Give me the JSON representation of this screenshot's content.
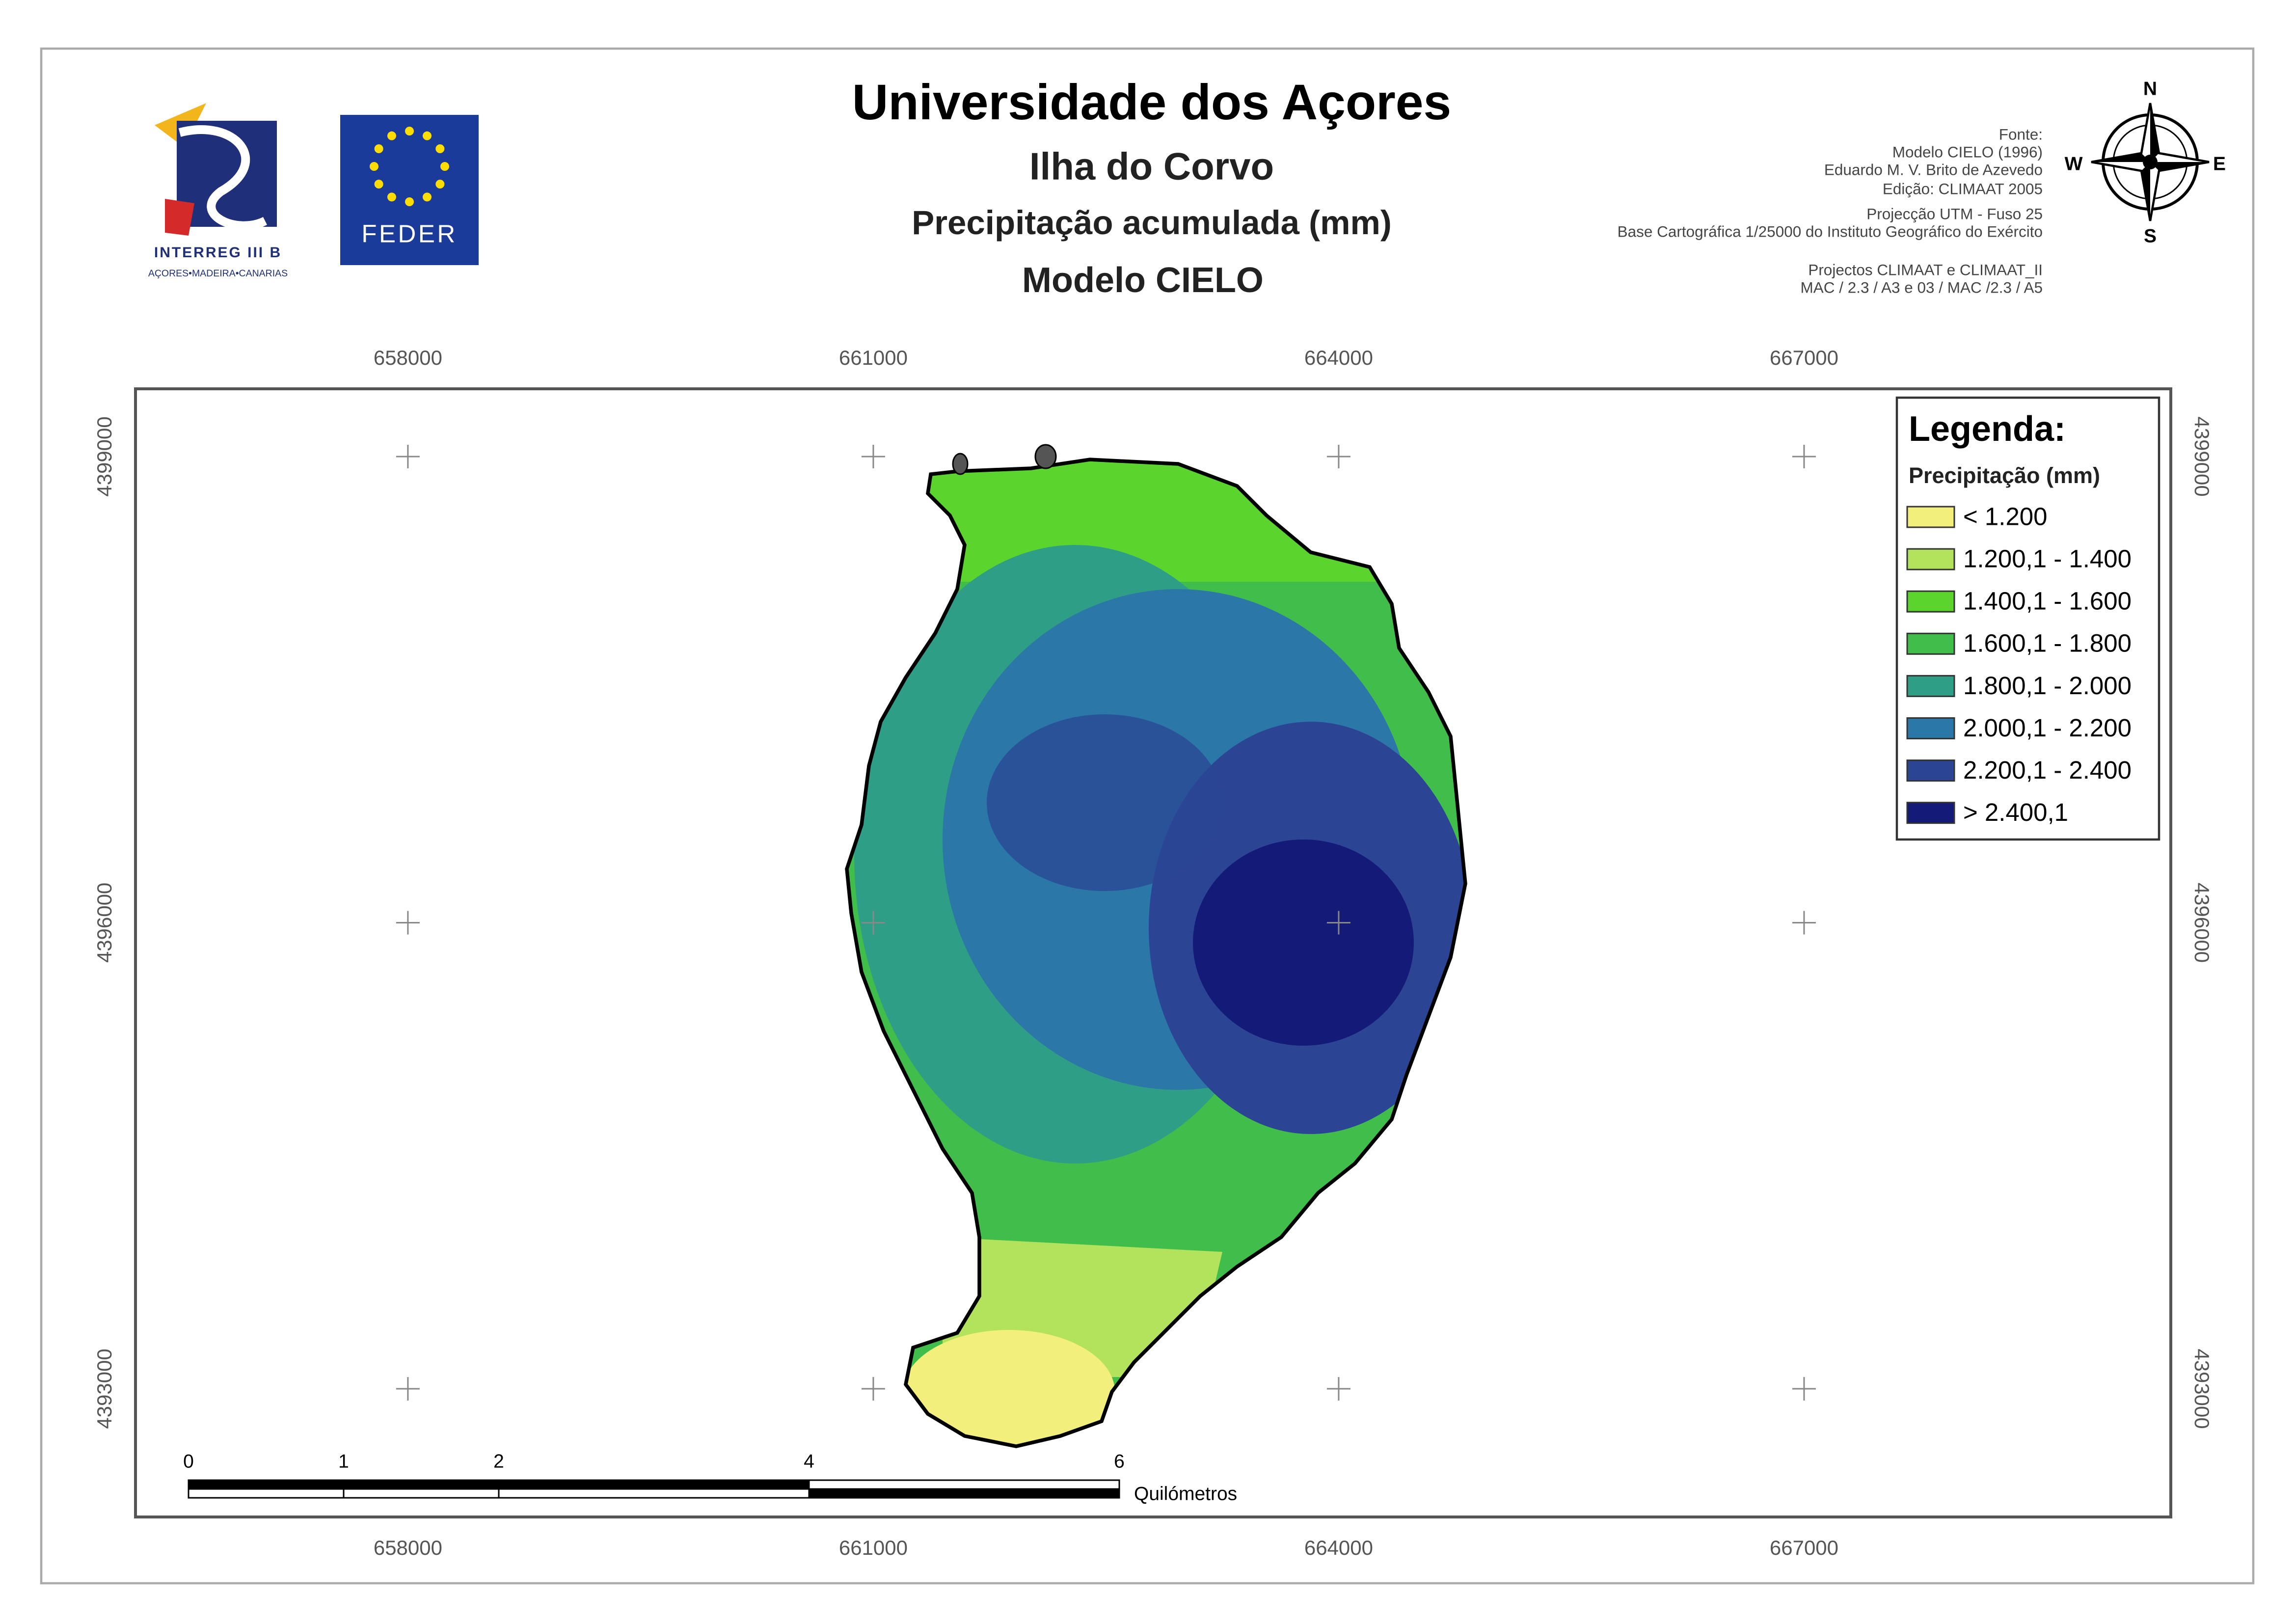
{
  "header": {
    "title": "Universidade dos Açores",
    "subtitle": "Ilha do Corvo",
    "variable": "Precipitação acumulada (mm)",
    "model": "Modelo CIELO"
  },
  "logos": {
    "interreg": "INTERREG III B",
    "regions": "AÇORES•MADEIRA•CANARIAS",
    "feder": "FEDER"
  },
  "source": [
    "Fonte:",
    "Modelo CIELO (1996)",
    "Eduardo M. V. Brito de Azevedo",
    "Edição: CLIMAAT 2005",
    "Projecção UTM - Fuso 25",
    "Base Cartográfica 1/25000 do Instituto Geográfico do Exército",
    "Projectos CLIMAAT e CLIMAAT_II",
    "MAC / 2.3 / A3 e 03 / MAC /2.3 / A5"
  ],
  "compass": {
    "n": "N",
    "e": "E",
    "s": "S",
    "w": "W"
  },
  "map": {
    "xlim": [
      656244,
      669364
    ],
    "ylim": [
      4392175,
      4399436
    ],
    "xticks": [
      658000,
      661000,
      664000,
      667000
    ],
    "yticks": [
      4393000,
      4396000,
      4399000
    ]
  },
  "legend": {
    "title": "Legenda:",
    "subtitle": "Precipitação (mm)",
    "items": [
      {
        "label": "< 1.200",
        "color": "#f3ef7c"
      },
      {
        "label": "1.200,1 - 1.400",
        "color": "#b3e25c"
      },
      {
        "label": "1.400,1 - 1.600",
        "color": "#5cd42e"
      },
      {
        "label": "1.600,1 - 1.800",
        "color": "#41bd4c"
      },
      {
        "label": "1.800,1 - 2.000",
        "color": "#2f9e86"
      },
      {
        "label": "2.000,1 - 2.200",
        "color": "#2a77a8"
      },
      {
        "label": "2.200,1 - 2.400",
        "color": "#2b4594"
      },
      {
        "label": "> 2.400,1",
        "color": "#141a78"
      }
    ]
  },
  "scale_bar": {
    "ticks": [
      0,
      1,
      2,
      4,
      6
    ],
    "unit": "Quilómetros"
  }
}
